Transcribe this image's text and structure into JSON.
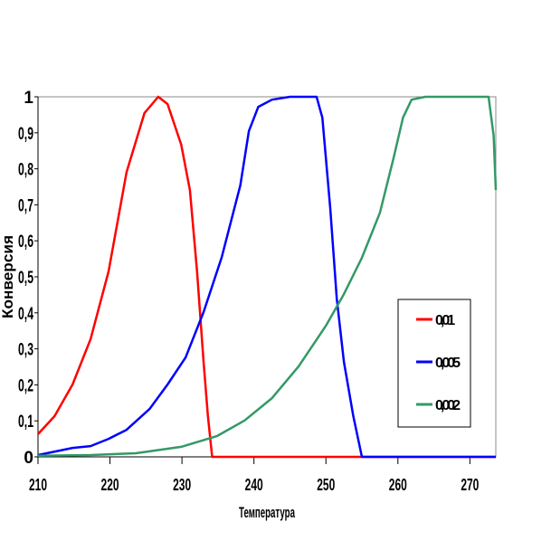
{
  "chart_data": {
    "type": "line",
    "title": "",
    "xlabel": "Температура",
    "ylabel": "Конверсия",
    "xlim": [
      210,
      273.6
    ],
    "ylim": [
      0,
      1
    ],
    "grid": false,
    "legend_position": "right",
    "x_ticks": [
      210,
      220,
      230,
      240,
      250,
      260,
      270
    ],
    "x_tick_labels": [
      "210",
      "220",
      "230",
      "240",
      "250",
      "260",
      "270"
    ],
    "y_ticks": [
      0,
      0.1,
      0.2,
      0.3,
      0.4,
      0.5,
      0.6,
      0.7,
      0.8,
      0.9,
      1
    ],
    "y_tick_labels": [
      "0",
      "0,1",
      "0,2",
      "0,3",
      "0,4",
      "0,5",
      "0,6",
      "0,7",
      "0,8",
      "0,9",
      "1"
    ],
    "series": [
      {
        "name": "0,01",
        "color": "#ff0000",
        "x": [
          210,
          212.3,
          214.8,
          217.3,
          219.8,
          222.3,
          224.8,
          226.7,
          228.0,
          229.9,
          231.1,
          232.1,
          233.0,
          233.6,
          234.2,
          237.2,
          273.6
        ],
        "y": [
          0.063,
          0.113,
          0.201,
          0.327,
          0.515,
          0.791,
          0.955,
          1,
          0.98,
          0.867,
          0.741,
          0.515,
          0.264,
          0.113,
          0,
          0,
          0
        ]
      },
      {
        "name": "0,005",
        "color": "#0000ff",
        "x": [
          210,
          214.8,
          217.3,
          219.8,
          222.3,
          225.5,
          228.0,
          230.5,
          233.0,
          235.5,
          238.1,
          239.3,
          240.6,
          242.5,
          245.0,
          248.7,
          249.5,
          250.6,
          251.5,
          252.5,
          253.8,
          255.0,
          273.6
        ],
        "y": [
          0.005,
          0.025,
          0.03,
          0.05,
          0.075,
          0.133,
          0.201,
          0.276,
          0.402,
          0.553,
          0.754,
          0.905,
          0.972,
          0.992,
          1,
          1,
          0.942,
          0.691,
          0.44,
          0.264,
          0.113,
          0,
          0
        ]
      },
      {
        "name": "0,002",
        "color": "#339966",
        "x": [
          210,
          217.3,
          223.6,
          229.9,
          234.9,
          238.7,
          242.5,
          246.2,
          250.0,
          252.5,
          255.0,
          257.5,
          259.4,
          260.7,
          261.9,
          263.8,
          272.6,
          273.3,
          273.6
        ],
        "y": [
          0.003,
          0.005,
          0.01,
          0.028,
          0.058,
          0.101,
          0.163,
          0.251,
          0.364,
          0.452,
          0.553,
          0.678,
          0.83,
          0.942,
          0.992,
          1,
          1,
          0.892,
          0.741
        ]
      }
    ]
  }
}
